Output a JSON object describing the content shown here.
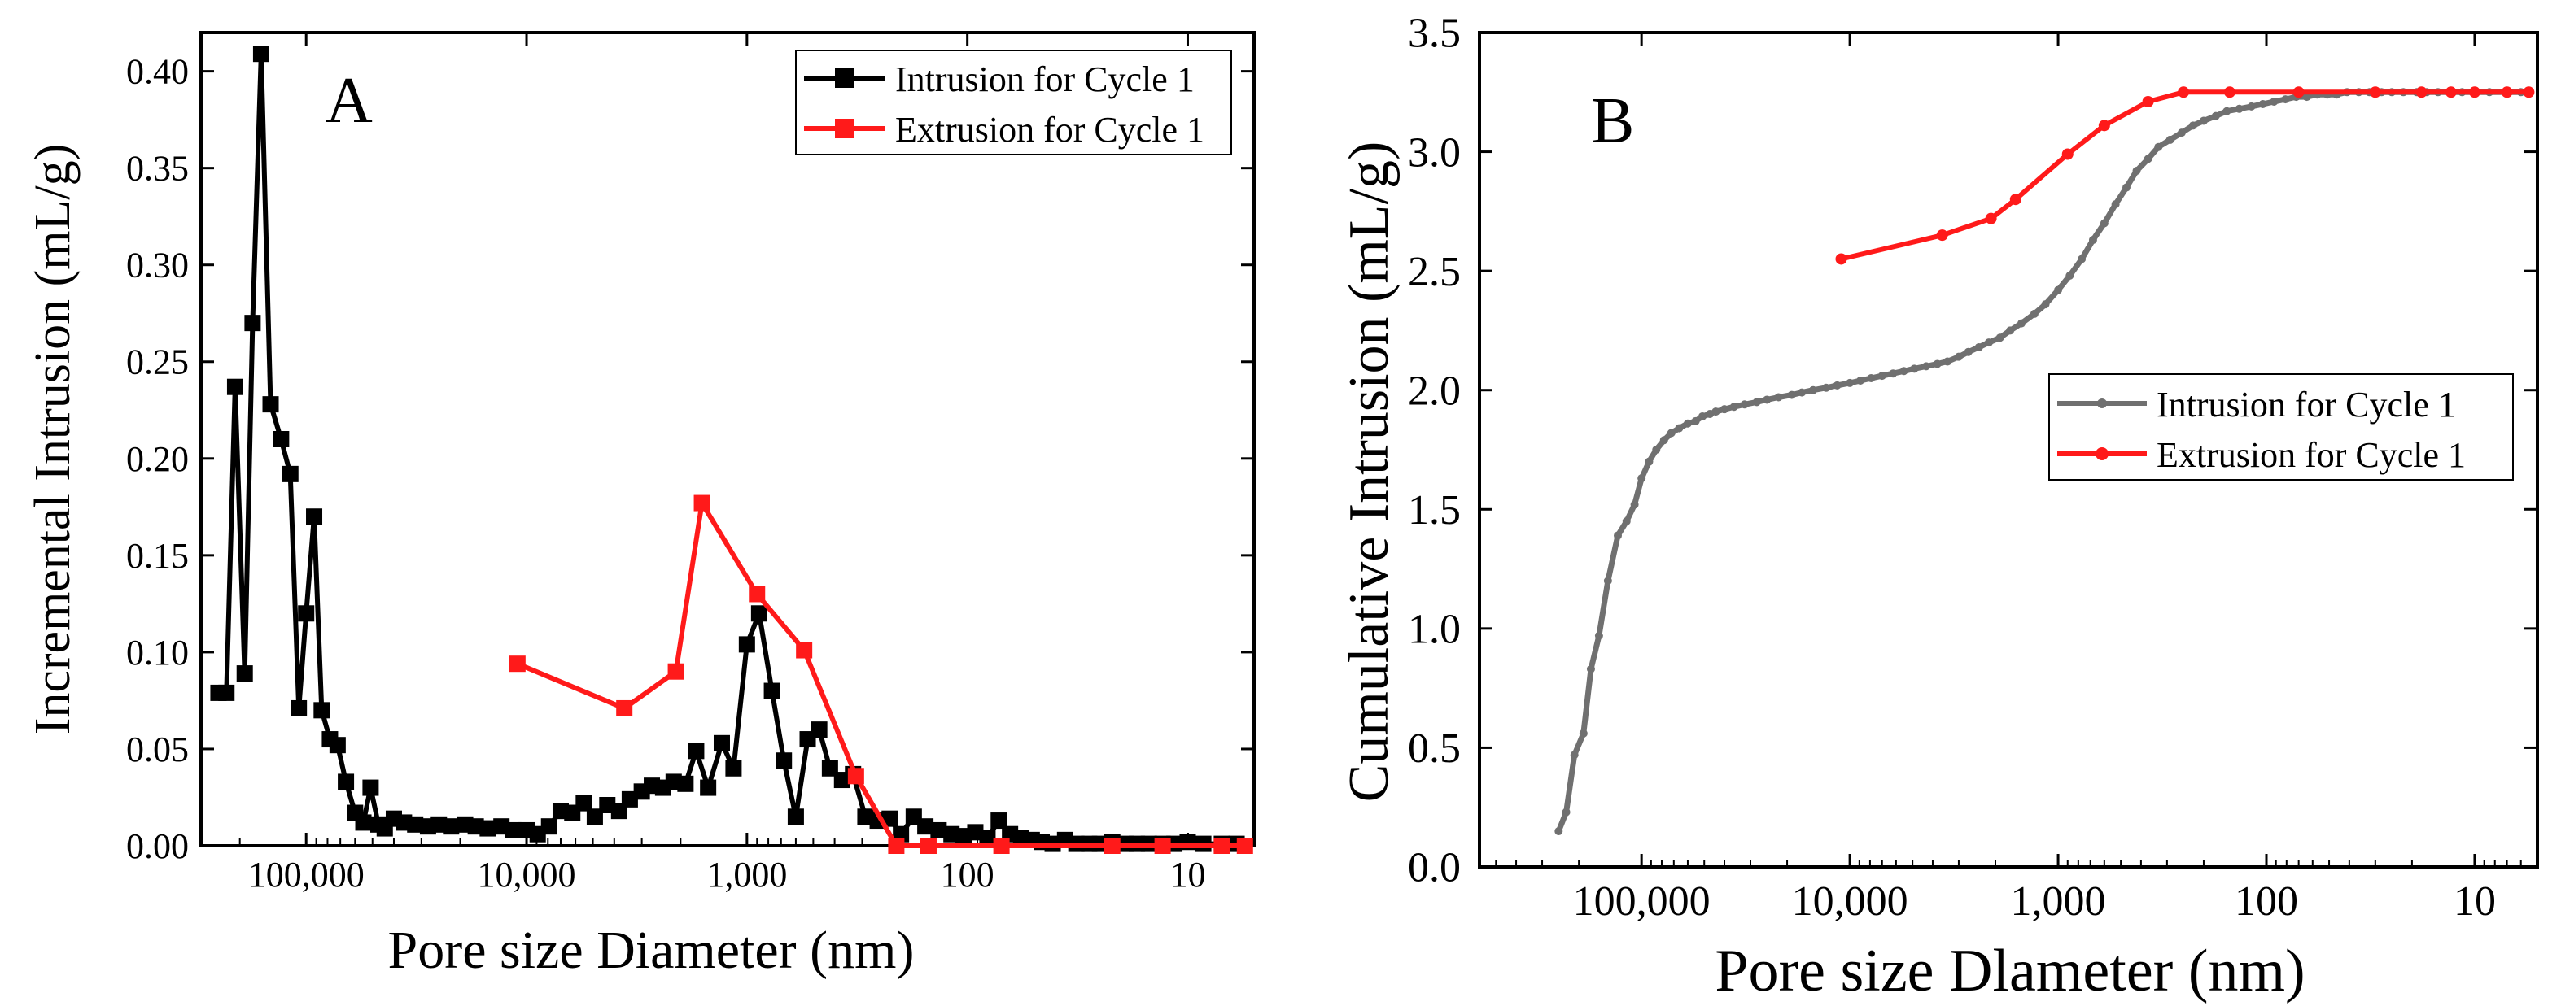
{
  "colors": {
    "intrusion_a": "#000000",
    "extrusion": "#ff1a1a",
    "intrusion_b": "#707070",
    "axis": "#000000"
  },
  "chart_data": [
    {
      "type": "line",
      "panel_label": "A",
      "title": "",
      "xlabel": "Pore size Diameter (nm)",
      "ylabel": "Incremental Intrusion (mL/g)",
      "x_scale": "log",
      "x_reversed": true,
      "xlim": [
        5,
        300000
      ],
      "ylim": [
        0,
        0.42
      ],
      "x_ticks": [
        100000,
        10000,
        1000,
        100,
        10
      ],
      "x_tick_labels": [
        "100,000",
        "10,000",
        "1,000",
        "100",
        "10"
      ],
      "y_ticks": [
        0,
        0.05,
        0.1,
        0.15,
        0.2,
        0.25,
        0.3,
        0.35,
        0.4
      ],
      "y_tick_labels": [
        "0.00",
        "0.05",
        "0.10",
        "0.15",
        "0.20",
        "0.25",
        "0.30",
        "0.35",
        "0.40"
      ],
      "legend_position": "top-right",
      "series": [
        {
          "name": "Intrusion for Cycle 1",
          "marker": "square",
          "color": "#000000",
          "x": [
            250000,
            230000,
            210000,
            190000,
            175000,
            160000,
            145000,
            130000,
            118000,
            108000,
            100000,
            92000,
            85000,
            78000,
            72000,
            66000,
            60000,
            55000,
            51000,
            47000,
            44000,
            40000,
            36000,
            32000,
            28000,
            25000,
            22000,
            19000,
            17000,
            15000,
            13000,
            11500,
            10000,
            8900,
            7900,
            7000,
            6200,
            5500,
            4900,
            4300,
            3800,
            3400,
            3000,
            2700,
            2400,
            2150,
            1900,
            1700,
            1500,
            1300,
            1150,
            1000,
            880,
            770,
            680,
            600,
            530,
            470,
            420,
            370,
            330,
            290,
            255,
            225,
            200,
            175,
            155,
            135,
            118,
            104,
            92,
            81,
            72,
            64,
            57,
            51,
            46,
            41,
            36,
            32,
            28,
            25,
            22,
            19,
            17,
            15,
            13,
            11.5,
            10,
            8.5,
            7,
            6
          ],
          "y": [
            0.079,
            0.079,
            0.237,
            0.089,
            0.27,
            0.409,
            0.228,
            0.21,
            0.192,
            0.071,
            0.12,
            0.17,
            0.07,
            0.055,
            0.052,
            0.033,
            0.017,
            0.012,
            0.03,
            0.011,
            0.009,
            0.014,
            0.012,
            0.011,
            0.01,
            0.011,
            0.01,
            0.011,
            0.01,
            0.009,
            0.01,
            0.008,
            0.008,
            0.006,
            0.01,
            0.018,
            0.017,
            0.022,
            0.015,
            0.021,
            0.018,
            0.024,
            0.028,
            0.031,
            0.03,
            0.033,
            0.032,
            0.049,
            0.03,
            0.053,
            0.04,
            0.104,
            0.12,
            0.08,
            0.044,
            0.015,
            0.055,
            0.06,
            0.04,
            0.034,
            0.037,
            0.015,
            0.013,
            0.014,
            0.006,
            0.015,
            0.01,
            0.008,
            0.006,
            0.005,
            0.007,
            0.004,
            0.013,
            0.006,
            0.004,
            0.003,
            0.002,
            0.001,
            0.003,
            0.001,
            0.001,
            0.001,
            0.002,
            0.001,
            0.001,
            0.001,
            0.001,
            0.001,
            0.002,
            0.001,
            0.001,
            0.001
          ]
        },
        {
          "name": "Extrusion for Cycle 1",
          "marker": "square",
          "color": "#ff1a1a",
          "x": [
            11000,
            3600,
            2100,
            1600,
            900,
            550,
            320,
            210,
            150,
            70,
            22,
            13,
            7,
            5.5
          ],
          "y": [
            0.094,
            0.071,
            0.09,
            0.177,
            0.13,
            0.101,
            0.036,
            0.0,
            0.0,
            0.0,
            0.0,
            0.0,
            0.0,
            0.0
          ]
        }
      ]
    },
    {
      "type": "line",
      "panel_label": "B",
      "title": "",
      "xlabel": "Pore size Dlameter (nm)",
      "ylabel": "Cumulative Intrusion (mL/g)",
      "x_scale": "log",
      "x_reversed": true,
      "xlim": [
        5,
        600000
      ],
      "ylim": [
        0,
        3.5
      ],
      "x_ticks": [
        100000,
        10000,
        1000,
        100,
        10
      ],
      "x_tick_labels": [
        "100,000",
        "10,000",
        "1,000",
        "100",
        "10"
      ],
      "y_ticks": [
        0,
        0.5,
        1.0,
        1.5,
        2.0,
        2.5,
        3.0,
        3.5
      ],
      "y_tick_labels": [
        "0.0",
        "0.5",
        "1.0",
        "1.5",
        "2.0",
        "2.5",
        "3.0",
        "3.5"
      ],
      "legend_position": "center-right",
      "series": [
        {
          "name": "Intrusion for Cycle 1",
          "marker": "dot",
          "color": "#707070",
          "x": [
            250000,
            230000,
            210000,
            190000,
            175000,
            160000,
            145000,
            130000,
            118000,
            108000,
            100000,
            92000,
            85000,
            78000,
            72000,
            66000,
            60000,
            55000,
            51000,
            47000,
            44000,
            40000,
            36000,
            32000,
            28000,
            25000,
            22000,
            19000,
            17000,
            15000,
            13000,
            11500,
            10000,
            8900,
            7900,
            7000,
            6200,
            5500,
            4900,
            4300,
            3800,
            3400,
            3000,
            2700,
            2400,
            2150,
            1900,
            1700,
            1500,
            1300,
            1150,
            1000,
            880,
            770,
            680,
            600,
            530,
            470,
            420,
            370,
            330,
            290,
            255,
            225,
            200,
            175,
            155,
            135,
            118,
            104,
            92,
            81,
            72,
            64,
            57,
            51,
            46,
            41,
            36,
            32,
            28,
            25,
            22,
            19,
            17,
            15,
            13,
            11.5,
            10,
            8.5,
            7,
            6
          ],
          "y": [
            0.15,
            0.23,
            0.47,
            0.56,
            0.83,
            0.97,
            1.2,
            1.39,
            1.45,
            1.52,
            1.63,
            1.7,
            1.75,
            1.79,
            1.82,
            1.84,
            1.86,
            1.87,
            1.89,
            1.9,
            1.91,
            1.92,
            1.93,
            1.94,
            1.95,
            1.96,
            1.97,
            1.98,
            1.99,
            2.0,
            2.01,
            2.02,
            2.03,
            2.04,
            2.05,
            2.06,
            2.07,
            2.08,
            2.09,
            2.1,
            2.11,
            2.12,
            2.14,
            2.16,
            2.18,
            2.2,
            2.22,
            2.25,
            2.28,
            2.32,
            2.36,
            2.42,
            2.48,
            2.55,
            2.63,
            2.7,
            2.78,
            2.85,
            2.92,
            2.97,
            3.02,
            3.05,
            3.08,
            3.11,
            3.13,
            3.15,
            3.17,
            3.18,
            3.19,
            3.2,
            3.21,
            3.22,
            3.23,
            3.23,
            3.24,
            3.24,
            3.24,
            3.25,
            3.25,
            3.25,
            3.25,
            3.25,
            3.25,
            3.25,
            3.25,
            3.25,
            3.25,
            3.25,
            3.25,
            3.25,
            3.25,
            3.25
          ]
        },
        {
          "name": "Extrusion for Cycle 1",
          "marker": "dot",
          "color": "#ff1a1a",
          "x": [
            11000,
            3600,
            2100,
            1600,
            900,
            600,
            370,
            250,
            150,
            70,
            30,
            18,
            13,
            10,
            7,
            5.5
          ],
          "y": [
            2.55,
            2.65,
            2.72,
            2.8,
            2.99,
            3.11,
            3.21,
            3.25,
            3.25,
            3.25,
            3.25,
            3.25,
            3.25,
            3.25,
            3.25,
            3.25
          ]
        }
      ]
    }
  ]
}
